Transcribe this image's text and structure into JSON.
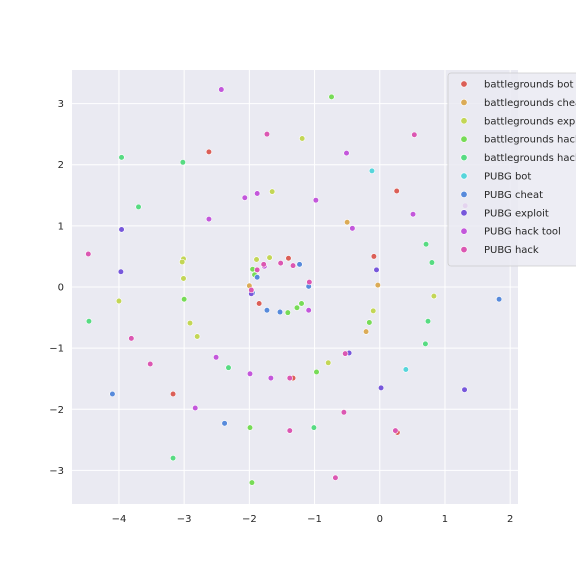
{
  "chart_data": {
    "type": "scatter",
    "title": "",
    "xlabel": "",
    "ylabel": "",
    "xlim": [
      -4.72,
      2.12
    ],
    "ylim": [
      -3.55,
      3.55
    ],
    "xticks": [
      -4,
      -3,
      -2,
      -1,
      0,
      1,
      2
    ],
    "yticks": [
      -3,
      -2,
      -1,
      0,
      1,
      2,
      3
    ],
    "grid": true,
    "background": "#eaeaf2",
    "legend_position": "top-right",
    "series": [
      {
        "name": "battlegrounds bot",
        "color": "#db5f57",
        "points": [
          [
            -2.62,
            2.21
          ],
          [
            0.26,
            1.57
          ],
          [
            -1.85,
            -0.27
          ],
          [
            -0.09,
            0.5
          ],
          [
            -1.4,
            0.47
          ],
          [
            -1.33,
            -1.49
          ],
          [
            -3.17,
            -1.75
          ],
          [
            0.27,
            -2.38
          ]
        ]
      },
      {
        "name": "battlegrounds cheat",
        "color": "#dbab57",
        "points": [
          [
            -0.5,
            1.06
          ],
          [
            -0.03,
            0.03
          ],
          [
            -0.21,
            -0.73
          ],
          [
            -2.0,
            0.02
          ]
        ]
      },
      {
        "name": "battlegrounds exploit",
        "color": "#c3d656",
        "points": [
          [
            -1.19,
            2.43
          ],
          [
            -1.65,
            1.56
          ],
          [
            -3.01,
            0.46
          ],
          [
            -3.03,
            0.41
          ],
          [
            -1.69,
            0.48
          ],
          [
            -1.89,
            0.45
          ],
          [
            -3.01,
            0.14
          ],
          [
            -4.0,
            -0.23
          ],
          [
            -2.91,
            -0.59
          ],
          [
            -2.8,
            -0.81
          ],
          [
            -0.79,
            -1.24
          ],
          [
            0.83,
            -0.15
          ],
          [
            -0.1,
            -0.39
          ]
        ]
      },
      {
        "name": "battlegrounds hack",
        "color": "#77db57",
        "points": [
          [
            -0.74,
            3.11
          ],
          [
            -1.95,
            0.29
          ],
          [
            -3.0,
            -0.2
          ],
          [
            -1.2,
            -0.27
          ],
          [
            -1.27,
            -0.34
          ],
          [
            -1.41,
            -0.42
          ],
          [
            -1.92,
            0.2
          ],
          [
            -1.99,
            -2.3
          ],
          [
            -1.96,
            -3.2
          ],
          [
            -0.16,
            -0.58
          ],
          [
            -0.97,
            -1.39
          ]
        ]
      },
      {
        "name": "battlegrounds hack tool",
        "color": "#57db82",
        "points": [
          [
            -3.96,
            2.12
          ],
          [
            -3.02,
            2.04
          ],
          [
            -3.7,
            1.31
          ],
          [
            -4.46,
            -0.56
          ],
          [
            -2.32,
            -1.32
          ],
          [
            -3.17,
            -2.8
          ],
          [
            -1.01,
            -2.3
          ],
          [
            0.71,
            0.7
          ],
          [
            0.8,
            0.4
          ],
          [
            0.74,
            -0.56
          ],
          [
            0.7,
            -0.93
          ]
        ]
      },
      {
        "name": "PUBG bot",
        "color": "#56d5db",
        "points": [
          [
            -0.12,
            1.9
          ],
          [
            0.4,
            -1.35
          ]
        ]
      },
      {
        "name": "PUBG cheat",
        "color": "#578adb",
        "points": [
          [
            -1.23,
            0.37
          ],
          [
            -1.95,
            -0.1
          ],
          [
            -1.73,
            -0.38
          ],
          [
            -1.53,
            -0.41
          ],
          [
            -1.88,
            0.16
          ],
          [
            -1.09,
            0.01
          ],
          [
            -4.1,
            -1.75
          ],
          [
            -2.38,
            -2.23
          ],
          [
            1.83,
            -0.2
          ]
        ]
      },
      {
        "name": "PUBG exploit",
        "color": "#7757db",
        "points": [
          [
            -3.96,
            0.94
          ],
          [
            -3.97,
            0.25
          ],
          [
            -0.05,
            0.28
          ],
          [
            -1.97,
            -0.11
          ],
          [
            -0.47,
            -1.08
          ],
          [
            0.02,
            -1.65
          ],
          [
            1.3,
            -1.68
          ]
        ]
      },
      {
        "name": "PUBG hack tool",
        "color": "#c357db",
        "points": [
          [
            -2.43,
            3.23
          ],
          [
            -0.51,
            2.19
          ],
          [
            -2.07,
            1.46
          ],
          [
            -1.88,
            1.53
          ],
          [
            -2.62,
            1.11
          ],
          [
            -0.98,
            1.42
          ],
          [
            -0.42,
            0.96
          ],
          [
            0.51,
            1.19
          ],
          [
            1.31,
            1.33
          ],
          [
            -1.09,
            -0.38
          ],
          [
            -2.51,
            -1.15
          ],
          [
            -1.99,
            -1.42
          ],
          [
            -1.67,
            -1.49
          ],
          [
            -2.83,
            -1.98
          ],
          [
            -1.77,
            0.34
          ]
        ]
      },
      {
        "name": "PUBG hack",
        "color": "#db57b2",
        "points": [
          [
            -1.73,
            2.5
          ],
          [
            0.53,
            2.49
          ],
          [
            -4.47,
            0.54
          ],
          [
            -1.78,
            0.37
          ],
          [
            -1.52,
            0.39
          ],
          [
            -1.33,
            0.35
          ],
          [
            -1.08,
            0.08
          ],
          [
            -1.88,
            0.28
          ],
          [
            -1.97,
            -0.05
          ],
          [
            -3.81,
            -0.84
          ],
          [
            -3.52,
            -1.26
          ],
          [
            -1.38,
            -1.49
          ],
          [
            -0.53,
            -1.09
          ],
          [
            -0.55,
            -2.05
          ],
          [
            -1.38,
            -2.35
          ],
          [
            -0.68,
            -3.12
          ],
          [
            0.24,
            -2.35
          ]
        ]
      }
    ]
  }
}
